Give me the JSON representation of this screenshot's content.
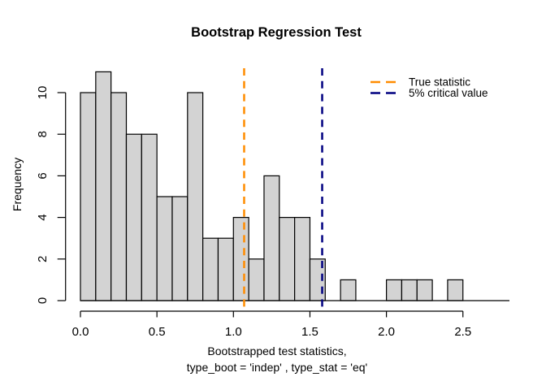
{
  "title": "Bootstrap Regression Test",
  "chart_data": {
    "type": "bar",
    "subtype": "histogram",
    "title": "Bootstrap Regression Test",
    "bins": {
      "start": 0.0,
      "width": 0.1
    },
    "counts": [
      10,
      11,
      10,
      8,
      8,
      5,
      5,
      10,
      3,
      3,
      4,
      2,
      6,
      4,
      4,
      2,
      0,
      1,
      0,
      0,
      1,
      1,
      1,
      0,
      1
    ],
    "xlim": [
      0.0,
      2.5
    ],
    "ylim": [
      0,
      11
    ],
    "x_ticks": [
      0.0,
      0.5,
      1.0,
      1.5,
      2.0,
      2.5
    ],
    "x_tick_labels": [
      "0.0",
      "0.5",
      "1.0",
      "1.5",
      "2.0",
      "2.5"
    ],
    "y_ticks": [
      0,
      2,
      4,
      6,
      8,
      10
    ],
    "y_tick_labels": [
      "0",
      "2",
      "4",
      "6",
      "8",
      "10"
    ],
    "xlabel_line1": "Bootstrapped test statistics,",
    "xlabel_line2": "type_boot = 'indep' , type_stat = 'eq'",
    "ylabel": "Frequency",
    "grid": false,
    "bar_fill": "#d3d3d3",
    "bar_stroke": "#000000",
    "vlines": [
      {
        "value": 1.07,
        "color": "#ff8c00",
        "style": "dashed",
        "label": "True statistic"
      },
      {
        "value": 1.58,
        "color": "#000080",
        "style": "dashed",
        "label": "5% critical value"
      }
    ],
    "legend": {
      "position": "top-right",
      "box": false
    }
  }
}
